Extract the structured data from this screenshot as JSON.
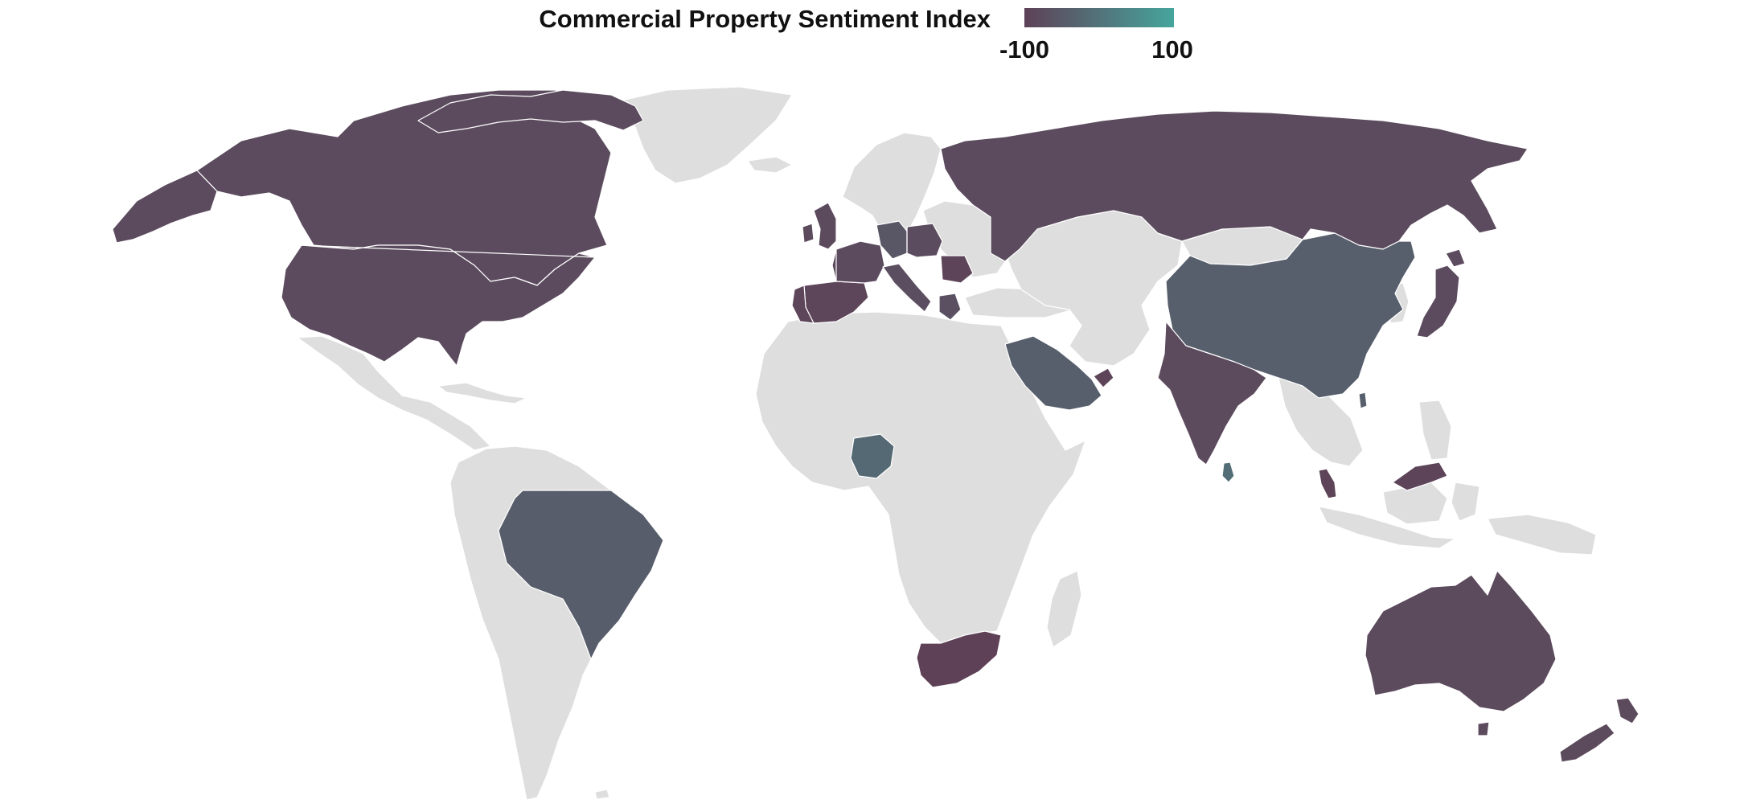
{
  "legend": {
    "title": "Commercial Property Sentiment Index",
    "min_label": "-100",
    "max_label": "100",
    "min": -100,
    "max": 100,
    "color_low": "#5e4157",
    "color_high": "#46a59d"
  },
  "colors": {
    "no_data": "#dedede",
    "background": "#ffffff"
  },
  "chart_data": {
    "type": "choropleth",
    "title": "Commercial Property Sentiment Index",
    "scale": {
      "min": -100,
      "max": 100
    },
    "regions": [
      {
        "name": "Canada",
        "value": -80
      },
      {
        "name": "United States",
        "value": -80
      },
      {
        "name": "Brazil",
        "value": -45
      },
      {
        "name": "Spain",
        "value": -92
      },
      {
        "name": "Portugal",
        "value": -92
      },
      {
        "name": "United Kingdom",
        "value": -82
      },
      {
        "name": "France",
        "value": -80
      },
      {
        "name": "Germany",
        "value": -58
      },
      {
        "name": "Poland",
        "value": -78
      },
      {
        "name": "Italy",
        "value": -75
      },
      {
        "name": "Romania",
        "value": -95
      },
      {
        "name": "Greece",
        "value": -70
      },
      {
        "name": "Russia",
        "value": -80
      },
      {
        "name": "China",
        "value": -40
      },
      {
        "name": "Japan",
        "value": -80
      },
      {
        "name": "India",
        "value": -82
      },
      {
        "name": "Sri Lanka",
        "value": -10
      },
      {
        "name": "Saudi Arabia",
        "value": -40
      },
      {
        "name": "United Arab Emirates",
        "value": -95
      },
      {
        "name": "Nigeria",
        "value": -20
      },
      {
        "name": "South Africa",
        "value": -100
      },
      {
        "name": "Malaysia",
        "value": -95
      },
      {
        "name": "Australia",
        "value": -82
      },
      {
        "name": "New Zealand",
        "value": -82
      }
    ]
  }
}
